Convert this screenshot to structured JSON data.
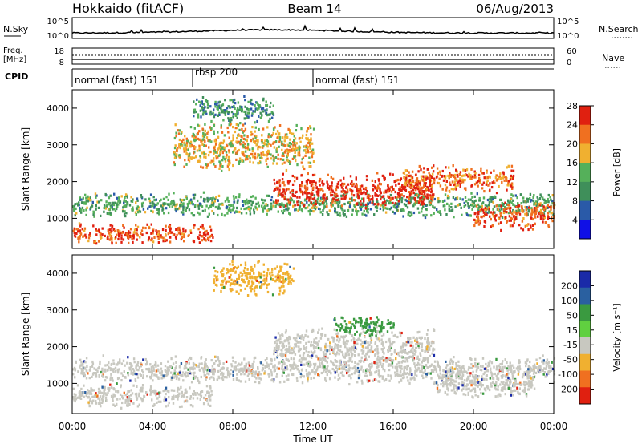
{
  "header": {
    "station": "Hokkaido (fitACF)",
    "beam": "Beam 14",
    "date": "06/Aug/2013"
  },
  "noise_panel": {
    "left_label": "N.Sky",
    "right_label": "N.Search",
    "left_ticks": [
      "10^5",
      "10^0"
    ],
    "right_ticks": [
      "10^5",
      "10^0"
    ]
  },
  "freq_panel": {
    "left_label_1": "Freq.",
    "left_label_2": "[MHz]",
    "right_label": "Nave",
    "left_ticks": [
      "18",
      "8"
    ],
    "right_ticks": [
      "60",
      "0"
    ]
  },
  "cpid_panel": {
    "label": "CPID",
    "segments": [
      {
        "name": "normal (fast) 151",
        "start_hour": 0,
        "end_hour": 6
      },
      {
        "name": "rbsp 200",
        "start_hour": 6,
        "end_hour": 12
      },
      {
        "name": "normal (fast) 151",
        "start_hour": 12,
        "end_hour": 24
      }
    ]
  },
  "x_axis": {
    "label": "Time UT",
    "ticks": [
      "00:00",
      "04:00",
      "08:00",
      "12:00",
      "16:00",
      "20:00",
      "00:00"
    ],
    "tick_hours": [
      0,
      4,
      8,
      12,
      16,
      20,
      24
    ]
  },
  "chart_data": [
    {
      "type": "heatmap",
      "title": "",
      "xlabel": "Time UT",
      "ylabel": "Slant Range [km]",
      "xlim": [
        0,
        24
      ],
      "ylim": [
        180,
        4500
      ],
      "yticks": [
        "1000",
        "2000",
        "3000",
        "4000"
      ],
      "ytick_values": [
        1000,
        2000,
        3000,
        4000
      ],
      "colorbar": {
        "label": "Power [dB]",
        "ticks": [
          "4",
          "8",
          "12",
          "16",
          "20",
          "24",
          "28"
        ],
        "colors": [
          "#1010e6",
          "#2a5aa8",
          "#3f8f5a",
          "#55b05a",
          "#f0b030",
          "#f07020",
          "#e02010"
        ]
      },
      "bands": [
        {
          "t0": 0,
          "t1": 24,
          "r_center": 1400,
          "r_width": 350,
          "level": 14
        },
        {
          "t0": 0,
          "t1": 7,
          "r_center": 600,
          "r_width": 300,
          "level": 26
        },
        {
          "t0": 10,
          "t1": 18,
          "r_center": 1800,
          "r_width": 500,
          "level": 28
        },
        {
          "t0": 16.5,
          "t1": 22,
          "r_center": 2100,
          "r_width": 400,
          "level": 24
        },
        {
          "t0": 5,
          "t1": 12,
          "r_center": 3000,
          "r_width": 700,
          "level": 20
        },
        {
          "t0": 6,
          "t1": 10,
          "r_center": 4000,
          "r_width": 400,
          "level": 12
        },
        {
          "t0": 20,
          "t1": 24,
          "r_center": 1100,
          "r_width": 400,
          "level": 26
        }
      ]
    },
    {
      "type": "heatmap",
      "title": "",
      "xlabel": "Time UT",
      "ylabel": "Slant Range [km]",
      "xlim": [
        0,
        24
      ],
      "ylim": [
        180,
        4500
      ],
      "yticks": [
        "1000",
        "2000",
        "3000",
        "4000"
      ],
      "ytick_values": [
        1000,
        2000,
        3000,
        4000
      ],
      "colorbar": {
        "label": "Velocity [m s⁻¹]",
        "ticks": [
          "200",
          "100",
          "50",
          "15",
          "-15",
          "-50",
          "-100",
          "-200"
        ],
        "colors": [
          "#1a2aa8",
          "#2a60a0",
          "#3a9a40",
          "#60d040",
          "#c8c8c0",
          "#f0b030",
          "#f07020",
          "#e02010"
        ]
      },
      "bands": [
        {
          "t0": 0,
          "t1": 24,
          "r_center": 1400,
          "r_width": 400,
          "level": -15
        },
        {
          "t0": 0,
          "t1": 7,
          "r_center": 700,
          "r_width": 350,
          "level": -15
        },
        {
          "t0": 7,
          "t1": 11,
          "r_center": 3900,
          "r_width": 500,
          "level": -50
        },
        {
          "t0": 10,
          "t1": 18,
          "r_center": 2000,
          "r_width": 600,
          "level": -15
        },
        {
          "t0": 13,
          "t1": 16,
          "r_center": 2600,
          "r_width": 300,
          "level": 50
        },
        {
          "t0": 18,
          "t1": 23,
          "r_center": 1000,
          "r_width": 400,
          "level": -15
        }
      ]
    }
  ]
}
